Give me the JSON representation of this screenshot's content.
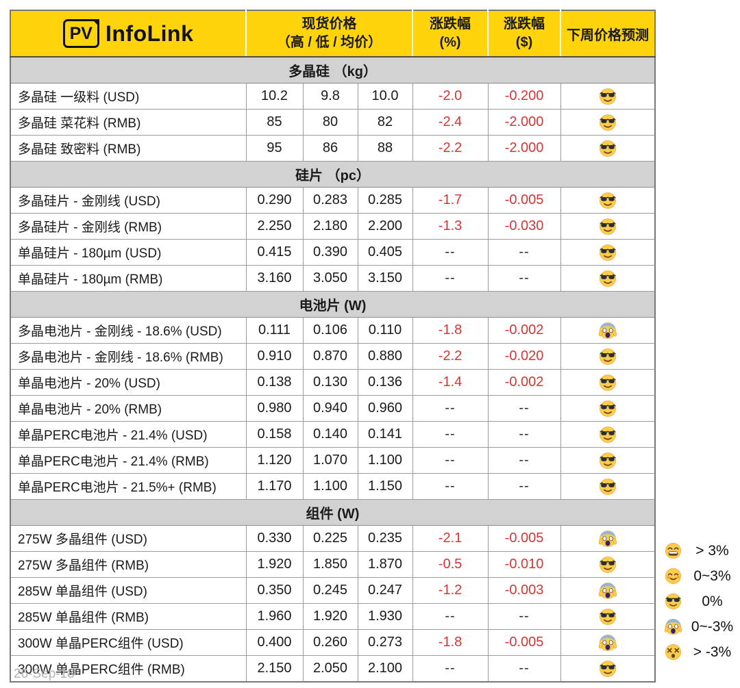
{
  "header": {
    "logo": {
      "badge": "PV",
      "name_bold": "Info",
      "name_rest": "Link"
    },
    "columns": {
      "spot_price_line1": "现货价格",
      "spot_price_line2": "（高 / 低 / 均价）",
      "change_pct_line1": "涨跌幅",
      "change_pct_line2": "(%)",
      "change_usd_line1": "涨跌幅",
      "change_usd_line2": "($)",
      "forecast": "下周价格预测"
    }
  },
  "sections": [
    {
      "title": "多晶硅 （kg）",
      "rows": [
        {
          "name": "多晶硅 一级料 (USD)",
          "high": "10.2",
          "low": "9.8",
          "avg": "10.0",
          "pct": "-2.0",
          "usd": "-0.200",
          "emoji": "sunglasses"
        },
        {
          "name": "多晶硅 菜花料 (RMB)",
          "high": "85",
          "low": "80",
          "avg": "82",
          "pct": "-2.4",
          "usd": "-2.000",
          "emoji": "sunglasses"
        },
        {
          "name": "多晶硅 致密料 (RMB)",
          "high": "95",
          "low": "86",
          "avg": "88",
          "pct": "-2.2",
          "usd": "-2.000",
          "emoji": "sunglasses"
        }
      ]
    },
    {
      "title": "硅片 （pc）",
      "rows": [
        {
          "name": "多晶硅片 - 金刚线 (USD)",
          "high": "0.290",
          "low": "0.283",
          "avg": "0.285",
          "pct": "-1.7",
          "usd": "-0.005",
          "emoji": "sunglasses"
        },
        {
          "name": "多晶硅片 - 金刚线 (RMB)",
          "high": "2.250",
          "low": "2.180",
          "avg": "2.200",
          "pct": "-1.3",
          "usd": "-0.030",
          "emoji": "sunglasses"
        },
        {
          "name": "单晶硅片 - 180µm (USD)",
          "high": "0.415",
          "low": "0.390",
          "avg": "0.405",
          "pct": "--",
          "usd": "--",
          "emoji": "sunglasses"
        },
        {
          "name": "单晶硅片 - 180µm (RMB)",
          "high": "3.160",
          "low": "3.050",
          "avg": "3.150",
          "pct": "--",
          "usd": "--",
          "emoji": "sunglasses"
        }
      ]
    },
    {
      "title": "电池片 (W)",
      "rows": [
        {
          "name": "多晶电池片 - 金刚线 - 18.6% (USD)",
          "high": "0.111",
          "low": "0.106",
          "avg": "0.110",
          "pct": "-1.8",
          "usd": "-0.002",
          "emoji": "scream"
        },
        {
          "name": "多晶电池片 - 金刚线 - 18.6% (RMB)",
          "high": "0.910",
          "low": "0.870",
          "avg": "0.880",
          "pct": "-2.2",
          "usd": "-0.020",
          "emoji": "sunglasses"
        },
        {
          "name": "单晶电池片 - 20% (USD)",
          "high": "0.138",
          "low": "0.130",
          "avg": "0.136",
          "pct": "-1.4",
          "usd": "-0.002",
          "emoji": "sunglasses"
        },
        {
          "name": "单晶电池片 - 20% (RMB)",
          "high": "0.980",
          "low": "0.940",
          "avg": "0.960",
          "pct": "--",
          "usd": "--",
          "emoji": "sunglasses"
        },
        {
          "name": "单晶PERC电池片 - 21.4% (USD)",
          "high": "0.158",
          "low": "0.140",
          "avg": "0.141",
          "pct": "--",
          "usd": "--",
          "emoji": "sunglasses"
        },
        {
          "name": "单晶PERC电池片 - 21.4% (RMB)",
          "high": "1.120",
          "low": "1.070",
          "avg": "1.100",
          "pct": "--",
          "usd": "--",
          "emoji": "sunglasses"
        },
        {
          "name": "单晶PERC电池片 - 21.5%+ (RMB)",
          "high": "1.170",
          "low": "1.100",
          "avg": "1.150",
          "pct": "--",
          "usd": "--",
          "emoji": "sunglasses"
        }
      ]
    },
    {
      "title": "组件 (W)",
      "rows": [
        {
          "name": "275W 多晶组件 (USD)",
          "high": "0.330",
          "low": "0.225",
          "avg": "0.235",
          "pct": "-2.1",
          "usd": "-0.005",
          "emoji": "scream"
        },
        {
          "name": "275W 多晶组件 (RMB)",
          "high": "1.920",
          "low": "1.850",
          "avg": "1.870",
          "pct": "-0.5",
          "usd": "-0.010",
          "emoji": "sunglasses"
        },
        {
          "name": "285W 单晶组件 (USD)",
          "high": "0.350",
          "low": "0.245",
          "avg": "0.247",
          "pct": "-1.2",
          "usd": "-0.003",
          "emoji": "scream"
        },
        {
          "name": "285W 单晶组件 (RMB)",
          "high": "1.960",
          "low": "1.920",
          "avg": "1.930",
          "pct": "--",
          "usd": "--",
          "emoji": "sunglasses"
        },
        {
          "name": "300W 单晶PERC组件 (USD)",
          "high": "0.400",
          "low": "0.260",
          "avg": "0.273",
          "pct": "-1.8",
          "usd": "-0.005",
          "emoji": "scream"
        },
        {
          "name": "300W 单晶PERC组件 (RMB)",
          "high": "2.150",
          "low": "2.050",
          "avg": "2.100",
          "pct": "--",
          "usd": "--",
          "emoji": "sunglasses"
        }
      ]
    }
  ],
  "legend": [
    {
      "emoji": "beaming",
      "label": "> 3%"
    },
    {
      "emoji": "smile",
      "label": "0~3%"
    },
    {
      "emoji": "sunglasses",
      "label": "0%"
    },
    {
      "emoji": "scream",
      "label": "0~-3%"
    },
    {
      "emoji": "dizzy",
      "label": "> -3%"
    }
  ],
  "footer": {
    "date": "26-Sep-18"
  },
  "colors": {
    "header_yellow": "#FFD40A",
    "section_gray": "#D2D2D2",
    "negative_red": "#DC3232",
    "grid_line": "#9A9A9A"
  }
}
